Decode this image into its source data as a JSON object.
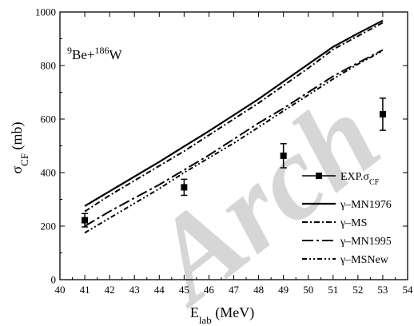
{
  "chart_data": {
    "type": "line",
    "xlabel": "E",
    "xlabel_sub": "lab",
    "xlabel_unit": " (MeV)",
    "ylabel": "σ",
    "ylabel_sub": "CF",
    "ylabel_unit": " (mb)",
    "annotation": {
      "sup1": "9",
      "main1": "Be+",
      "sup2": "186",
      "main2": "W"
    },
    "watermark": "Arch",
    "xlim": [
      40,
      54
    ],
    "ylim": [
      0,
      1000
    ],
    "xticks": [
      "40",
      "41",
      "42",
      "43",
      "44",
      "45",
      "46",
      "47",
      "48",
      "49",
      "50",
      "51",
      "52",
      "53",
      "54"
    ],
    "yticks": [
      "0",
      "200",
      "400",
      "600",
      "800",
      "1000"
    ],
    "legend_position": "bottom-right",
    "experimental": {
      "name": "EXP.σ",
      "name_sub": "CF",
      "x": [
        41,
        45,
        49,
        53
      ],
      "y": [
        222,
        345,
        463,
        618
      ],
      "err": [
        25,
        30,
        45,
        60
      ]
    },
    "series": [
      {
        "name": "γ–MN1976",
        "style": "solid",
        "x": [
          41,
          42,
          43,
          44,
          45,
          46,
          47,
          48,
          49,
          50,
          51,
          52,
          53
        ],
        "y": [
          275,
          330,
          385,
          440,
          498,
          555,
          615,
          675,
          740,
          805,
          870,
          920,
          968
        ]
      },
      {
        "name": "γ–MS",
        "style": "dash-dot",
        "x": [
          41,
          42,
          43,
          44,
          45,
          46,
          47,
          48,
          49,
          50,
          51,
          52,
          53
        ],
        "y": [
          255,
          315,
          370,
          425,
          480,
          540,
          600,
          660,
          725,
          790,
          860,
          910,
          960
        ]
      },
      {
        "name": "γ–MN1995",
        "style": "long-dash-dot",
        "x": [
          41,
          42,
          43,
          44,
          45,
          46,
          47,
          48,
          49,
          50,
          51,
          52,
          53
        ],
        "y": [
          200,
          255,
          305,
          355,
          410,
          465,
          525,
          585,
          640,
          700,
          760,
          810,
          858
        ]
      },
      {
        "name": "γ–MSNew",
        "style": "dash-dot-dot",
        "x": [
          41,
          42,
          43,
          44,
          45,
          46,
          47,
          48,
          49,
          50,
          51,
          52,
          53
        ],
        "y": [
          175,
          230,
          285,
          340,
          400,
          455,
          510,
          570,
          630,
          690,
          750,
          805,
          855
        ]
      }
    ],
    "colors": {
      "line": "#000000",
      "watermark": "#d6d6d6"
    }
  }
}
